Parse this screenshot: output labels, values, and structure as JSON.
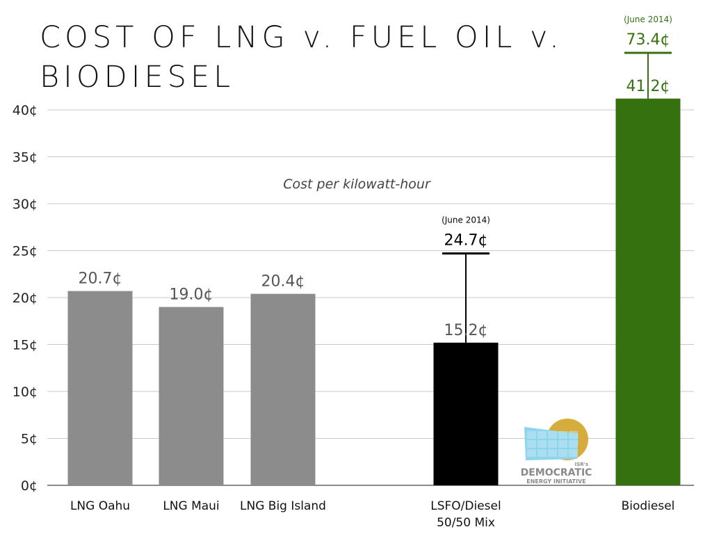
{
  "title": "COST OF LNG v. FUEL OIL v. BIODIESEL",
  "chart_data": {
    "type": "bar",
    "title": "COST OF LNG v. FUEL OIL v. BIODIESEL",
    "subtitle": "Cost per kilowatt-hour",
    "categories": [
      "LNG Oahu",
      "LNG Maui",
      "LNG Big Island",
      "LSFO/Diesel 50/50 Mix",
      "Biodiesel"
    ],
    "category_lines": [
      [
        "LNG Oahu"
      ],
      [
        "LNG Maui"
      ],
      [
        "LNG Big Island"
      ],
      [
        "LSFO/Diesel",
        "50/50 Mix"
      ],
      [
        "Biodiesel"
      ]
    ],
    "values": [
      20.7,
      19.0,
      20.4,
      15.2,
      41.2
    ],
    "value_labels": [
      "20.7¢",
      "19.0¢",
      "20.4¢",
      "15.2¢",
      "41.2¢"
    ],
    "bar_colors": [
      "#8c8c8c",
      "#8c8c8c",
      "#8c8c8c",
      "#000000",
      "#35720f"
    ],
    "label_colors": [
      "#555555",
      "#555555",
      "#555555",
      "#555555",
      "#35720f"
    ],
    "high_values": [
      null,
      null,
      null,
      24.7,
      73.4
    ],
    "high_labels": [
      null,
      null,
      null,
      "24.7¢",
      "73.4¢"
    ],
    "high_notes": [
      null,
      null,
      null,
      "(June 2014)",
      "(June 2014)"
    ],
    "high_colors": [
      null,
      null,
      null,
      "#000000",
      "#35720f"
    ],
    "ylim": [
      0,
      40
    ],
    "yticks": [
      0,
      5,
      10,
      15,
      20,
      25,
      30,
      35,
      40
    ],
    "ytick_labels": [
      "0¢",
      "5¢",
      "10¢",
      "15¢",
      "20¢",
      "25¢",
      "30¢",
      "35¢",
      "40¢"
    ],
    "grid": true,
    "xlabel": "",
    "ylabel": ""
  },
  "logo": {
    "small": "ISR's",
    "line1": "DEMOCRATIC",
    "line2": "ENERGY INITIATIVE",
    "colors": {
      "panel": "#8fd4ec",
      "sun": "#d6ad3c",
      "text": "#8a8a8a"
    }
  }
}
